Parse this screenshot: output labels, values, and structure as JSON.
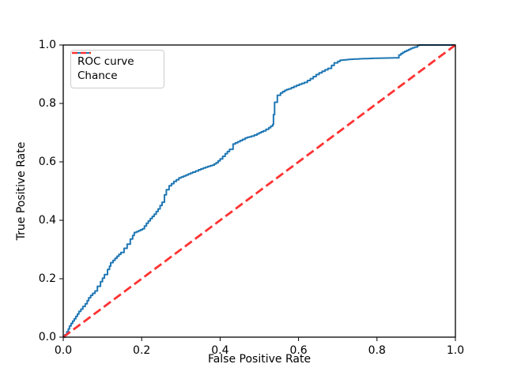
{
  "figure": {
    "background": "#ffffff",
    "axes_color": "#000000"
  },
  "chart_data": {
    "type": "line",
    "title": "",
    "xlabel": "False Positive Rate",
    "ylabel": "True Positive Rate",
    "xlim": [
      0.0,
      1.0
    ],
    "ylim": [
      0.0,
      1.0
    ],
    "xtick_labels": [
      "0.0",
      "0.2",
      "0.4",
      "0.6",
      "0.8",
      "1.0"
    ],
    "ytick_labels": [
      "0.0",
      "0.2",
      "0.4",
      "0.6",
      "0.8",
      "1.0"
    ],
    "grid": false,
    "legend": {
      "position": "upper left",
      "entries": [
        {
          "label": "ROC curve",
          "color": "#1f77b4",
          "linestyle": "solid"
        },
        {
          "label": "Chance",
          "color": "#ff3333",
          "linestyle": "dashed"
        }
      ]
    },
    "series": [
      {
        "name": "ROC curve",
        "color": "#1f77b4",
        "linestyle": "solid",
        "step_like": true,
        "points": [
          [
            0.0,
            0.0
          ],
          [
            0.004,
            0.008
          ],
          [
            0.009,
            0.018
          ],
          [
            0.013,
            0.028
          ],
          [
            0.016,
            0.038
          ],
          [
            0.02,
            0.047
          ],
          [
            0.024,
            0.055
          ],
          [
            0.028,
            0.063
          ],
          [
            0.032,
            0.071
          ],
          [
            0.036,
            0.079
          ],
          [
            0.04,
            0.088
          ],
          [
            0.045,
            0.096
          ],
          [
            0.05,
            0.105
          ],
          [
            0.056,
            0.114
          ],
          [
            0.061,
            0.125
          ],
          [
            0.065,
            0.135
          ],
          [
            0.07,
            0.143
          ],
          [
            0.075,
            0.15
          ],
          [
            0.081,
            0.158
          ],
          [
            0.087,
            0.174
          ],
          [
            0.095,
            0.19
          ],
          [
            0.1,
            0.202
          ],
          [
            0.105,
            0.214
          ],
          [
            0.113,
            0.232
          ],
          [
            0.118,
            0.243
          ],
          [
            0.121,
            0.255
          ],
          [
            0.127,
            0.263
          ],
          [
            0.132,
            0.27
          ],
          [
            0.137,
            0.277
          ],
          [
            0.147,
            0.29
          ],
          [
            0.155,
            0.304
          ],
          [
            0.163,
            0.318
          ],
          [
            0.171,
            0.336
          ],
          [
            0.177,
            0.348
          ],
          [
            0.181,
            0.358
          ],
          [
            0.192,
            0.364
          ],
          [
            0.202,
            0.371
          ],
          [
            0.212,
            0.39
          ],
          [
            0.222,
            0.406
          ],
          [
            0.232,
            0.421
          ],
          [
            0.242,
            0.439
          ],
          [
            0.252,
            0.462
          ],
          [
            0.258,
            0.487
          ],
          [
            0.263,
            0.505
          ],
          [
            0.27,
            0.518
          ],
          [
            0.282,
            0.533
          ],
          [
            0.295,
            0.545
          ],
          [
            0.313,
            0.555
          ],
          [
            0.33,
            0.565
          ],
          [
            0.345,
            0.573
          ],
          [
            0.363,
            0.582
          ],
          [
            0.38,
            0.589
          ],
          [
            0.39,
            0.597
          ],
          [
            0.4,
            0.61
          ],
          [
            0.413,
            0.628
          ],
          [
            0.424,
            0.643
          ],
          [
            0.433,
            0.661
          ],
          [
            0.445,
            0.669
          ],
          [
            0.457,
            0.677
          ],
          [
            0.464,
            0.682
          ],
          [
            0.48,
            0.688
          ],
          [
            0.494,
            0.696
          ],
          [
            0.51,
            0.706
          ],
          [
            0.524,
            0.717
          ],
          [
            0.534,
            0.728
          ],
          [
            0.536,
            0.762
          ],
          [
            0.539,
            0.804
          ],
          [
            0.546,
            0.828
          ],
          [
            0.554,
            0.836
          ],
          [
            0.565,
            0.845
          ],
          [
            0.575,
            0.85
          ],
          [
            0.595,
            0.862
          ],
          [
            0.615,
            0.872
          ],
          [
            0.63,
            0.885
          ],
          [
            0.645,
            0.899
          ],
          [
            0.66,
            0.91
          ],
          [
            0.675,
            0.92
          ],
          [
            0.684,
            0.93
          ],
          [
            0.691,
            0.939
          ],
          [
            0.7,
            0.944
          ],
          [
            0.706,
            0.948
          ],
          [
            0.73,
            0.951
          ],
          [
            0.76,
            0.953
          ],
          [
            0.8,
            0.955
          ],
          [
            0.847,
            0.956
          ],
          [
            0.856,
            0.966
          ],
          [
            0.866,
            0.975
          ],
          [
            0.876,
            0.982
          ],
          [
            0.886,
            0.988
          ],
          [
            0.896,
            0.993
          ],
          [
            0.903,
            0.998
          ],
          [
            0.907,
            1.0
          ],
          [
            1.0,
            1.0
          ]
        ]
      },
      {
        "name": "Chance",
        "color": "#ff3333",
        "linestyle": "dashed",
        "points": [
          [
            0.0,
            0.0
          ],
          [
            1.0,
            1.0
          ]
        ]
      }
    ]
  }
}
